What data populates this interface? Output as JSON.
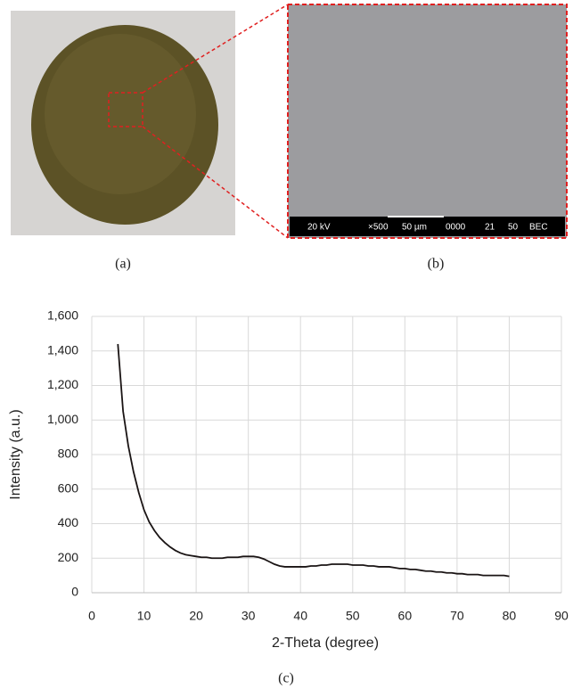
{
  "panels": {
    "a": {
      "label": "(a)"
    },
    "b": {
      "label": "(b)",
      "sem_info": [
        "20 kV",
        "×500",
        "50 µm",
        "0000",
        "21",
        "50",
        "BEC"
      ]
    },
    "c": {
      "label": "(c)"
    }
  },
  "chart_data": {
    "type": "line",
    "x_label": "2-Theta (degree)",
    "y_label": "Intensity (a.u.)",
    "color": "#1a1414",
    "grid": true,
    "xlim": [
      0,
      90
    ],
    "xticks": [
      0,
      10,
      20,
      30,
      40,
      50,
      60,
      70,
      80,
      90
    ],
    "ylim": [
      0,
      1600
    ],
    "yticks": [
      0,
      200,
      400,
      600,
      800,
      {
        "value": 1000,
        "label": "1,000"
      },
      {
        "value": 1200,
        "label": "1,200"
      },
      {
        "value": 1400,
        "label": "1,400"
      },
      {
        "value": 1600,
        "label": "1,600"
      }
    ],
    "x": [
      5,
      6,
      7,
      8,
      9,
      10,
      11,
      12,
      13,
      14,
      15,
      16,
      17,
      18,
      19,
      20,
      21,
      22,
      23,
      24,
      25,
      26,
      27,
      28,
      29,
      30,
      31,
      32,
      33,
      34,
      35,
      36,
      37,
      38,
      39,
      40,
      41,
      42,
      43,
      44,
      45,
      46,
      47,
      48,
      49,
      50,
      51,
      52,
      53,
      54,
      55,
      56,
      57,
      58,
      59,
      60,
      61,
      62,
      63,
      64,
      65,
      66,
      67,
      68,
      69,
      70,
      71,
      72,
      73,
      74,
      75,
      76,
      77,
      78,
      79,
      80
    ],
    "values": [
      1440,
      1050,
      850,
      700,
      580,
      480,
      410,
      360,
      320,
      290,
      265,
      245,
      230,
      220,
      215,
      210,
      205,
      205,
      200,
      200,
      200,
      205,
      205,
      205,
      210,
      210,
      210,
      205,
      195,
      180,
      165,
      155,
      150,
      150,
      150,
      150,
      150,
      155,
      155,
      160,
      160,
      165,
      165,
      165,
      165,
      160,
      160,
      160,
      155,
      155,
      150,
      150,
      150,
      145,
      140,
      140,
      135,
      135,
      130,
      125,
      125,
      120,
      120,
      115,
      115,
      110,
      110,
      105,
      105,
      105,
      100,
      100,
      100,
      100,
      100,
      95
    ]
  }
}
